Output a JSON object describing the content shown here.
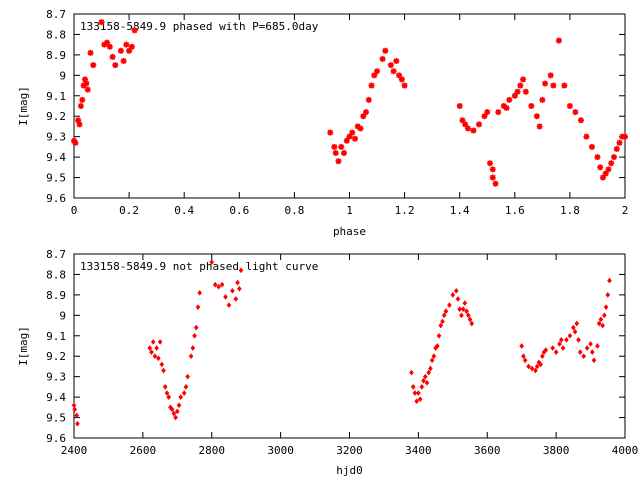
{
  "chart_data": [
    {
      "type": "scatter",
      "title": "133158-5849.9 phased with P=685.0day",
      "xlabel": "phase",
      "ylabel": "I[mag]",
      "xlim": [
        0,
        2
      ],
      "ylim": [
        8.7,
        9.6
      ],
      "y_inverted": true,
      "grid": false,
      "marker_color": "#ff0000",
      "x_ticks": [
        "0",
        "0.2",
        "0.4",
        "0.6",
        "0.8",
        "1",
        "1.2",
        "1.4",
        "1.6",
        "1.8",
        "2"
      ],
      "y_ticks": [
        "8.7",
        "8.8",
        "8.9",
        "9",
        "9.1",
        "9.2",
        "9.3",
        "9.4",
        "9.5",
        "9.6"
      ],
      "points": [
        [
          0.0,
          9.32
        ],
        [
          0.005,
          9.33
        ],
        [
          0.015,
          9.22
        ],
        [
          0.02,
          9.24
        ],
        [
          0.025,
          9.15
        ],
        [
          0.03,
          9.12
        ],
        [
          0.035,
          9.05
        ],
        [
          0.04,
          9.02
        ],
        [
          0.045,
          9.04
        ],
        [
          0.05,
          9.07
        ],
        [
          0.06,
          8.89
        ],
        [
          0.07,
          8.95
        ],
        [
          0.1,
          8.74
        ],
        [
          0.11,
          8.85
        ],
        [
          0.12,
          8.84
        ],
        [
          0.13,
          8.86
        ],
        [
          0.14,
          8.91
        ],
        [
          0.15,
          8.95
        ],
        [
          0.17,
          8.88
        ],
        [
          0.18,
          8.93
        ],
        [
          0.19,
          8.85
        ],
        [
          0.2,
          8.88
        ],
        [
          0.21,
          8.86
        ],
        [
          0.22,
          8.78
        ],
        [
          0.93,
          9.28
        ],
        [
          0.945,
          9.35
        ],
        [
          0.95,
          9.38
        ],
        [
          0.96,
          9.42
        ],
        [
          0.97,
          9.35
        ],
        [
          0.98,
          9.38
        ],
        [
          0.99,
          9.32
        ],
        [
          1.0,
          9.3
        ],
        [
          1.01,
          9.28
        ],
        [
          1.02,
          9.31
        ],
        [
          1.03,
          9.25
        ],
        [
          1.04,
          9.26
        ],
        [
          1.05,
          9.2
        ],
        [
          1.06,
          9.18
        ],
        [
          1.07,
          9.12
        ],
        [
          1.08,
          9.05
        ],
        [
          1.09,
          9.0
        ],
        [
          1.1,
          8.98
        ],
        [
          1.12,
          8.92
        ],
        [
          1.13,
          8.88
        ],
        [
          1.15,
          8.95
        ],
        [
          1.16,
          8.98
        ],
        [
          1.17,
          8.93
        ],
        [
          1.18,
          9.0
        ],
        [
          1.19,
          9.02
        ],
        [
          1.2,
          9.05
        ],
        [
          1.4,
          9.15
        ],
        [
          1.41,
          9.22
        ],
        [
          1.42,
          9.24
        ],
        [
          1.43,
          9.26
        ],
        [
          1.45,
          9.27
        ],
        [
          1.47,
          9.24
        ],
        [
          1.49,
          9.2
        ],
        [
          1.5,
          9.18
        ],
        [
          1.51,
          9.43
        ],
        [
          1.52,
          9.46
        ],
        [
          1.53,
          9.53
        ],
        [
          1.52,
          9.5
        ],
        [
          1.54,
          9.18
        ],
        [
          1.56,
          9.15
        ],
        [
          1.57,
          9.16
        ],
        [
          1.58,
          9.12
        ],
        [
          1.6,
          9.1
        ],
        [
          1.61,
          9.08
        ],
        [
          1.62,
          9.05
        ],
        [
          1.63,
          9.02
        ],
        [
          1.64,
          9.08
        ],
        [
          1.66,
          9.15
        ],
        [
          1.68,
          9.2
        ],
        [
          1.69,
          9.25
        ],
        [
          1.7,
          9.12
        ],
        [
          1.71,
          9.04
        ],
        [
          1.73,
          9.0
        ],
        [
          1.74,
          9.05
        ],
        [
          1.76,
          8.83
        ],
        [
          1.78,
          9.05
        ],
        [
          1.8,
          9.15
        ],
        [
          1.82,
          9.18
        ],
        [
          1.84,
          9.22
        ],
        [
          1.86,
          9.3
        ],
        [
          1.88,
          9.35
        ],
        [
          1.9,
          9.4
        ],
        [
          1.91,
          9.45
        ],
        [
          1.92,
          9.5
        ],
        [
          1.93,
          9.48
        ],
        [
          1.94,
          9.46
        ],
        [
          1.95,
          9.43
        ],
        [
          1.96,
          9.4
        ],
        [
          1.97,
          9.36
        ],
        [
          1.98,
          9.33
        ],
        [
          1.99,
          9.3
        ],
        [
          2.0,
          9.3
        ]
      ]
    },
    {
      "type": "scatter",
      "title": "133158-5849.9 not phased light curve",
      "xlabel": "hjd0",
      "ylabel": "I[mag]",
      "xlim": [
        2400,
        4000
      ],
      "ylim": [
        8.7,
        9.6
      ],
      "y_inverted": true,
      "grid": false,
      "marker_color": "#ff0000",
      "x_ticks": [
        "2400",
        "2600",
        "2800",
        "3000",
        "3200",
        "3400",
        "3600",
        "3800",
        "4000"
      ],
      "y_ticks": [
        "8.7",
        "8.8",
        "8.9",
        "9",
        "9.1",
        "9.2",
        "9.3",
        "9.4",
        "9.5",
        "9.6"
      ],
      "points": [
        [
          2400,
          9.44
        ],
        [
          2402,
          9.46
        ],
        [
          2408,
          9.49
        ],
        [
          2410,
          9.53
        ],
        [
          2620,
          9.16
        ],
        [
          2625,
          9.18
        ],
        [
          2630,
          9.13
        ],
        [
          2635,
          9.2
        ],
        [
          2640,
          9.16
        ],
        [
          2645,
          9.21
        ],
        [
          2650,
          9.13
        ],
        [
          2655,
          9.24
        ],
        [
          2660,
          9.27
        ],
        [
          2665,
          9.35
        ],
        [
          2670,
          9.38
        ],
        [
          2675,
          9.4
        ],
        [
          2680,
          9.45
        ],
        [
          2685,
          9.46
        ],
        [
          2690,
          9.48
        ],
        [
          2695,
          9.5
        ],
        [
          2700,
          9.47
        ],
        [
          2705,
          9.44
        ],
        [
          2710,
          9.4
        ],
        [
          2720,
          9.38
        ],
        [
          2725,
          9.35
        ],
        [
          2730,
          9.3
        ],
        [
          2740,
          9.2
        ],
        [
          2745,
          9.16
        ],
        [
          2750,
          9.1
        ],
        [
          2755,
          9.06
        ],
        [
          2760,
          8.96
        ],
        [
          2765,
          8.89
        ],
        [
          2800,
          8.74
        ],
        [
          2810,
          8.85
        ],
        [
          2820,
          8.86
        ],
        [
          2830,
          8.85
        ],
        [
          2840,
          8.91
        ],
        [
          2850,
          8.95
        ],
        [
          2860,
          8.88
        ],
        [
          2870,
          8.92
        ],
        [
          2875,
          8.84
        ],
        [
          2880,
          8.87
        ],
        [
          2885,
          8.78
        ],
        [
          3380,
          9.28
        ],
        [
          3385,
          9.35
        ],
        [
          3390,
          9.38
        ],
        [
          3395,
          9.42
        ],
        [
          3400,
          9.38
        ],
        [
          3405,
          9.41
        ],
        [
          3410,
          9.35
        ],
        [
          3415,
          9.32
        ],
        [
          3420,
          9.3
        ],
        [
          3425,
          9.33
        ],
        [
          3430,
          9.28
        ],
        [
          3435,
          9.26
        ],
        [
          3440,
          9.22
        ],
        [
          3445,
          9.2
        ],
        [
          3450,
          9.16
        ],
        [
          3455,
          9.15
        ],
        [
          3460,
          9.1
        ],
        [
          3465,
          9.05
        ],
        [
          3470,
          9.03
        ],
        [
          3475,
          9.0
        ],
        [
          3480,
          8.98
        ],
        [
          3490,
          8.95
        ],
        [
          3500,
          8.9
        ],
        [
          3510,
          8.88
        ],
        [
          3515,
          8.92
        ],
        [
          3520,
          8.97
        ],
        [
          3525,
          9.0
        ],
        [
          3530,
          8.97
        ],
        [
          3535,
          8.94
        ],
        [
          3540,
          8.98
        ],
        [
          3545,
          9.0
        ],
        [
          3550,
          9.02
        ],
        [
          3555,
          9.04
        ],
        [
          3700,
          9.15
        ],
        [
          3705,
          9.2
        ],
        [
          3710,
          9.22
        ],
        [
          3720,
          9.25
        ],
        [
          3730,
          9.26
        ],
        [
          3740,
          9.27
        ],
        [
          3745,
          9.25
        ],
        [
          3750,
          9.23
        ],
        [
          3755,
          9.24
        ],
        [
          3760,
          9.2
        ],
        [
          3765,
          9.18
        ],
        [
          3770,
          9.17
        ],
        [
          3790,
          9.16
        ],
        [
          3800,
          9.18
        ],
        [
          3810,
          9.14
        ],
        [
          3815,
          9.12
        ],
        [
          3820,
          9.16
        ],
        [
          3830,
          9.12
        ],
        [
          3840,
          9.1
        ],
        [
          3850,
          9.06
        ],
        [
          3855,
          9.08
        ],
        [
          3860,
          9.04
        ],
        [
          3865,
          9.12
        ],
        [
          3870,
          9.18
        ],
        [
          3880,
          9.2
        ],
        [
          3890,
          9.16
        ],
        [
          3900,
          9.14
        ],
        [
          3905,
          9.18
        ],
        [
          3910,
          9.22
        ],
        [
          3920,
          9.15
        ],
        [
          3925,
          9.04
        ],
        [
          3930,
          9.02
        ],
        [
          3935,
          9.05
        ],
        [
          3940,
          9.0
        ],
        [
          3945,
          8.96
        ],
        [
          3950,
          8.9
        ],
        [
          3955,
          8.83
        ]
      ]
    }
  ]
}
